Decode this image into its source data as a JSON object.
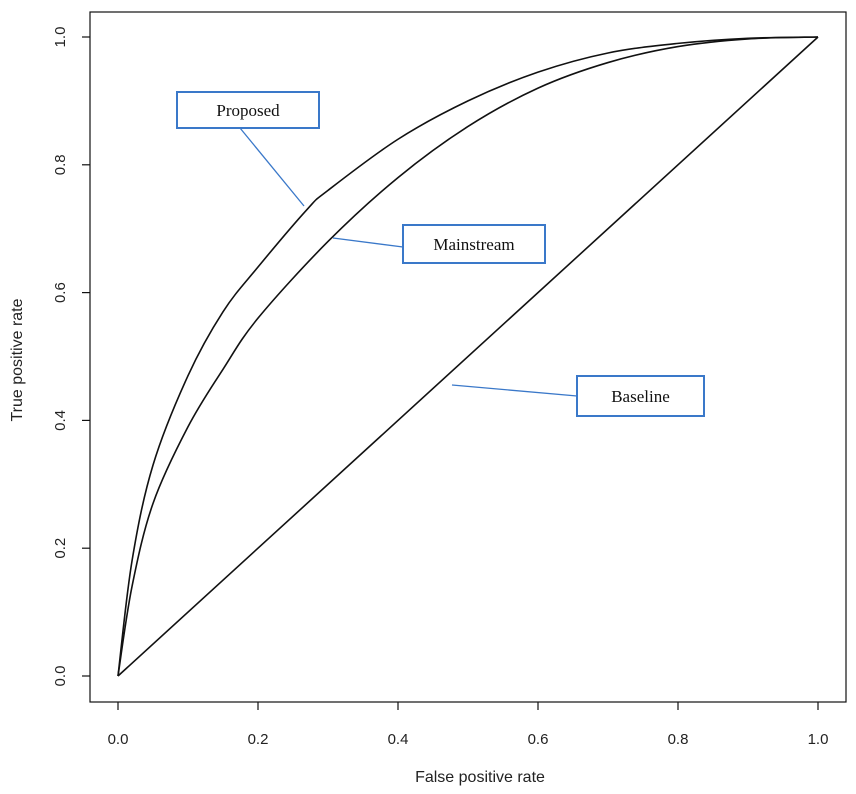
{
  "chart_data": {
    "type": "line",
    "title": "",
    "xlabel": "False positive rate",
    "ylabel": "True positive rate",
    "xlim": [
      0,
      1
    ],
    "ylim": [
      0,
      1
    ],
    "x_ticks": [
      "0.0",
      "0.2",
      "0.4",
      "0.6",
      "0.8",
      "1.0"
    ],
    "y_ticks": [
      "0.0",
      "0.2",
      "0.4",
      "0.6",
      "0.8",
      "1.0"
    ],
    "grid": false,
    "line_color": "#111111",
    "callout_color": "#3a78c9",
    "series": [
      {
        "name": "Proposed",
        "x": [
          0,
          0.02,
          0.05,
          0.1,
          0.15,
          0.2,
          0.27,
          0.3,
          0.4,
          0.5,
          0.6,
          0.7,
          0.8,
          0.9,
          1.0
        ],
        "y": [
          0,
          0.18,
          0.33,
          0.47,
          0.57,
          0.64,
          0.73,
          0.76,
          0.84,
          0.9,
          0.945,
          0.975,
          0.99,
          0.998,
          1.0
        ]
      },
      {
        "name": "Mainstream",
        "x": [
          0,
          0.02,
          0.05,
          0.1,
          0.15,
          0.2,
          0.3,
          0.4,
          0.5,
          0.6,
          0.7,
          0.8,
          0.9,
          1.0
        ],
        "y": [
          0,
          0.14,
          0.27,
          0.39,
          0.48,
          0.56,
          0.68,
          0.78,
          0.86,
          0.92,
          0.96,
          0.985,
          0.997,
          1.0
        ]
      },
      {
        "name": "Baseline",
        "x": [
          0,
          1
        ],
        "y": [
          0,
          1
        ]
      }
    ],
    "annotations": [
      {
        "text": "Proposed",
        "target_series": "Proposed"
      },
      {
        "text": "Mainstream",
        "target_series": "Mainstream"
      },
      {
        "text": "Baseline",
        "target_series": "Baseline"
      }
    ]
  }
}
